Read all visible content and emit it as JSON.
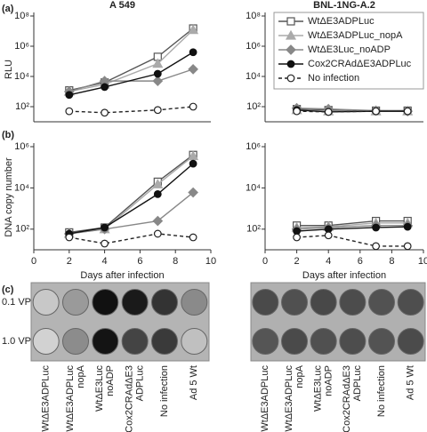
{
  "chart_data": [
    {
      "type": "line",
      "title": "A 549",
      "panel": "(a)",
      "ylabel": "RLU",
      "log_y": true,
      "x": [
        2,
        4,
        7,
        9
      ],
      "xlim": [
        0,
        10
      ],
      "ylim": [
        10,
        100000000
      ],
      "yticks": [
        {
          "value": 100,
          "label": "10²"
        },
        {
          "value": 10000,
          "label": "10⁴"
        },
        {
          "value": 1000000,
          "label": "10⁶"
        },
        {
          "value": 100000000,
          "label": "10⁸"
        }
      ],
      "series": [
        {
          "color": "#555555",
          "marker": "square",
          "filled": false,
          "dashed": false,
          "values": [
            1200,
            4000,
            200000,
            15000000
          ]
        },
        {
          "color": "#aaaaaa",
          "marker": "triangle",
          "filled": true,
          "dashed": false,
          "values": [
            1000,
            3000,
            70000,
            12000000
          ]
        },
        {
          "color": "#888888",
          "marker": "diamond",
          "filled": true,
          "dashed": false,
          "values": [
            1000,
            5000,
            5000,
            30000
          ]
        },
        {
          "color": "#111111",
          "marker": "circle",
          "filled": true,
          "dashed": false,
          "values": [
            600,
            2000,
            15000,
            400000
          ]
        },
        {
          "color": "#222222",
          "marker": "circle",
          "filled": false,
          "dashed": true,
          "values": [
            50,
            40,
            60,
            100
          ]
        }
      ]
    },
    {
      "type": "line",
      "title": "BNL-1NG-A.2",
      "log_y": true,
      "legend": "upper right",
      "x": [
        2,
        4,
        7,
        9
      ],
      "xlim": [
        0,
        10
      ],
      "ylim": [
        10,
        100000000
      ],
      "yticks": [
        {
          "value": 100,
          "label": "10²"
        },
        {
          "value": 10000,
          "label": "10⁴"
        },
        {
          "value": 1000000,
          "label": "10⁶"
        },
        {
          "value": 100000000,
          "label": "10⁸"
        }
      ],
      "series": [
        {
          "name": "WtΔE3ADPLuc",
          "color": "#555555",
          "marker": "square",
          "filled": false,
          "dashed": false,
          "values": [
            70,
            60,
            55,
            55
          ]
        },
        {
          "name": "WtΔE3ADPLuc_nopA",
          "color": "#aaaaaa",
          "marker": "triangle",
          "filled": true,
          "dashed": false,
          "values": [
            60,
            50,
            50,
            50
          ]
        },
        {
          "name": "WtΔE3Luc_noADP",
          "color": "#888888",
          "marker": "diamond",
          "filled": true,
          "dashed": false,
          "values": [
            80,
            70,
            55,
            50
          ]
        },
        {
          "name": "Cox2CRAdΔE3ADPLuc",
          "color": "#111111",
          "marker": "circle",
          "filled": true,
          "dashed": false,
          "values": [
            60,
            45,
            50,
            50
          ]
        },
        {
          "name": "No infection",
          "color": "#222222",
          "marker": "circle",
          "filled": false,
          "dashed": true,
          "values": [
            50,
            45,
            50,
            50
          ]
        }
      ]
    },
    {
      "type": "line",
      "panel": "(b)",
      "ylabel": "DNA copy number",
      "xlabel": "Days after infection",
      "log_y": true,
      "x": [
        2,
        4,
        7,
        9
      ],
      "xlim": [
        0,
        10
      ],
      "xticks": [
        0,
        2,
        4,
        6,
        8,
        10
      ],
      "ylim": [
        10,
        1000000
      ],
      "yticks": [
        {
          "value": 100,
          "label": "10²"
        },
        {
          "value": 10000,
          "label": "10⁴"
        },
        {
          "value": 1000000,
          "label": "10⁶"
        }
      ],
      "series": [
        {
          "color": "#555555",
          "marker": "square",
          "filled": false,
          "dashed": false,
          "values": [
            70,
            120,
            20000,
            400000
          ]
        },
        {
          "color": "#aaaaaa",
          "marker": "triangle",
          "filled": true,
          "dashed": false,
          "values": [
            60,
            100,
            15000,
            350000
          ]
        },
        {
          "color": "#888888",
          "marker": "diamond",
          "filled": true,
          "dashed": false,
          "values": [
            60,
            100,
            250,
            6000
          ]
        },
        {
          "color": "#111111",
          "marker": "circle",
          "filled": true,
          "dashed": false,
          "values": [
            60,
            120,
            5000,
            150000
          ]
        },
        {
          "color": "#222222",
          "marker": "circle",
          "filled": false,
          "dashed": true,
          "values": [
            40,
            20,
            60,
            40
          ]
        }
      ]
    },
    {
      "type": "line",
      "xlabel": "Days after infection",
      "log_y": true,
      "x": [
        2,
        4,
        7,
        9
      ],
      "xlim": [
        0,
        10
      ],
      "xticks": [
        0,
        2,
        4,
        6,
        8,
        10
      ],
      "ylim": [
        10,
        1000000
      ],
      "yticks": [
        {
          "value": 100,
          "label": "10²"
        },
        {
          "value": 10000,
          "label": "10⁴"
        },
        {
          "value": 1000000,
          "label": "10⁶"
        }
      ],
      "series": [
        {
          "color": "#555555",
          "marker": "square",
          "filled": false,
          "dashed": false,
          "values": [
            150,
            150,
            250,
            250
          ]
        },
        {
          "color": "#aaaaaa",
          "marker": "triangle",
          "filled": true,
          "dashed": false,
          "values": [
            120,
            130,
            200,
            200
          ]
        },
        {
          "color": "#888888",
          "marker": "diamond",
          "filled": true,
          "dashed": false,
          "values": [
            100,
            120,
            150,
            150
          ]
        },
        {
          "color": "#111111",
          "marker": "circle",
          "filled": true,
          "dashed": false,
          "values": [
            80,
            100,
            120,
            130
          ]
        },
        {
          "color": "#222222",
          "marker": "circle",
          "filled": false,
          "dashed": true,
          "values": [
            40,
            50,
            15,
            15
          ]
        }
      ]
    }
  ],
  "panel_c": {
    "label": "(c)",
    "rows": [
      "0.1 VP",
      "1.0 VP"
    ],
    "well_labels": [
      [
        "WtΔE3ADPLuc"
      ],
      [
        "WtΔE3ADPLuc",
        "nopA"
      ],
      [
        "WtΔE3Luc",
        "noADP"
      ],
      [
        "Cox2CRAdΔE3",
        "ADPLuc"
      ],
      [
        "No infection"
      ],
      [
        "Ad 5 Wt"
      ]
    ]
  }
}
